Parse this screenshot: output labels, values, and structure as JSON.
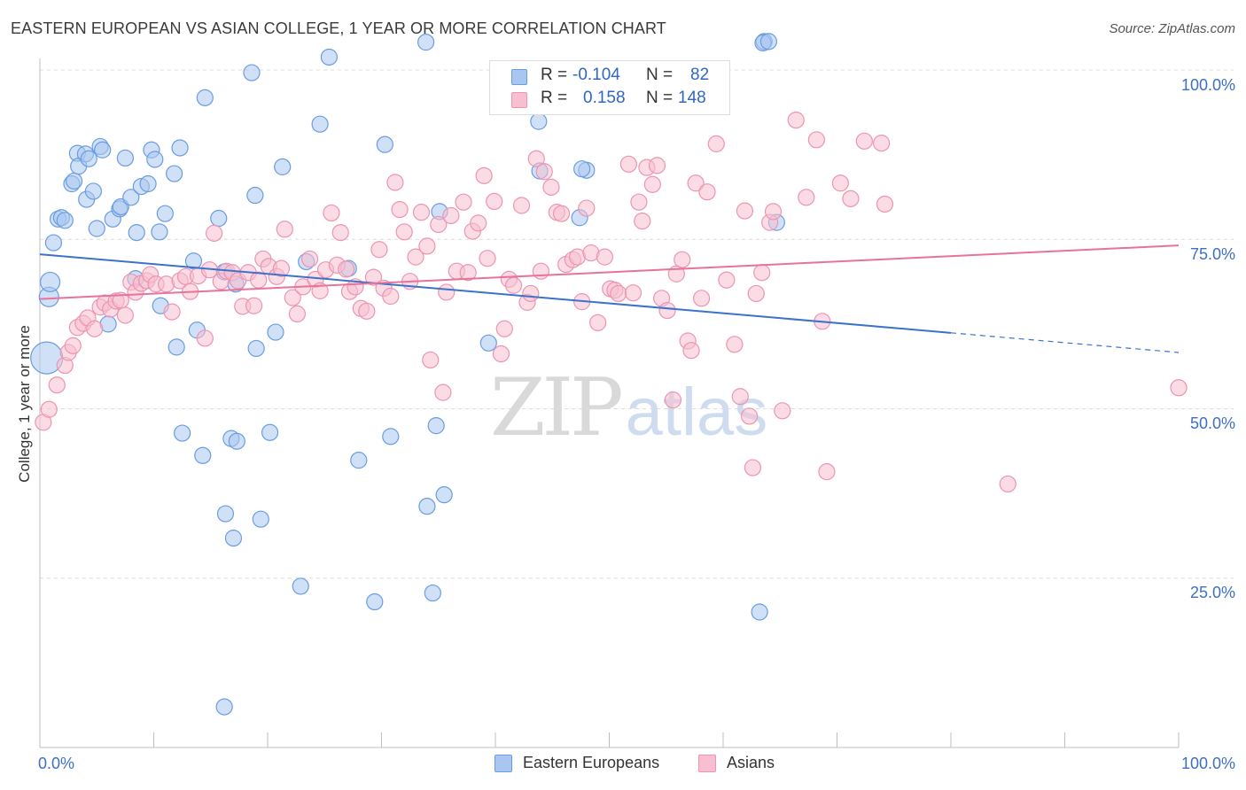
{
  "title": "EASTERN EUROPEAN VS ASIAN COLLEGE, 1 YEAR OR MORE CORRELATION CHART",
  "source": "Source: ZipAtlas.com",
  "watermark": {
    "part1": "ZIP",
    "part2": "atlas"
  },
  "legend": {
    "r_label": "R =",
    "n_label": "N =",
    "eastern": {
      "r": "-0.104",
      "n": "82"
    },
    "asian": {
      "r": "0.158",
      "n": "148"
    }
  },
  "bottom_legend": {
    "eastern": "Eastern Europeans",
    "asian": "Asians"
  },
  "colors": {
    "blue_fill": "#a9c6f0",
    "blue_stroke": "#6a9de0",
    "blue_line": "#3a72cc",
    "pink_fill": "#f7bfd0",
    "pink_stroke": "#ec94b2",
    "pink_line": "#e8729a",
    "tick_text": "#3d6fc6",
    "grid": "#dcdcdc"
  },
  "chart_data": {
    "type": "scatter",
    "title": "EASTERN EUROPEAN VS ASIAN COLLEGE, 1 YEAR OR MORE CORRELATION CHART",
    "xlabel": "",
    "ylabel": "College, 1 year or more",
    "xlim": [
      0,
      100
    ],
    "ylim": [
      0,
      100
    ],
    "x_tick_labels": [
      "0.0%",
      "100.0%"
    ],
    "y_tick_labels": [
      "25.0%",
      "50.0%",
      "75.0%",
      "100.0%"
    ],
    "y_gridlines": [
      25,
      50,
      75,
      100
    ],
    "series": [
      {
        "name": "Eastern Europeans",
        "r": -0.104,
        "n": 82,
        "trend": {
          "x0": 0,
          "y0": 72.8,
          "x1": 80,
          "y1": 61.2,
          "dashed_to_x": 100,
          "dashed_to_y": 58.3
        },
        "points": [
          [
            0.6,
            57.5
          ],
          [
            0.8,
            66.5
          ],
          [
            0.9,
            68.7
          ],
          [
            1.2,
            74.5
          ],
          [
            1.6,
            78.0
          ],
          [
            1.9,
            78.2
          ],
          [
            2.2,
            77.8
          ],
          [
            2.8,
            83.2
          ],
          [
            3.0,
            83.6
          ],
          [
            3.3,
            87.7
          ],
          [
            3.4,
            85.8
          ],
          [
            4.0,
            87.6
          ],
          [
            4.3,
            86.9
          ],
          [
            4.1,
            80.9
          ],
          [
            4.7,
            82.1
          ],
          [
            5.3,
            88.7
          ],
          [
            5.5,
            88.2
          ],
          [
            5.0,
            76.6
          ],
          [
            6.0,
            62.5
          ],
          [
            6.4,
            78.0
          ],
          [
            7.0,
            79.5
          ],
          [
            7.1,
            79.8
          ],
          [
            7.5,
            87.0
          ],
          [
            8.0,
            81.2
          ],
          [
            8.5,
            76.0
          ],
          [
            8.9,
            82.8
          ],
          [
            9.5,
            83.2
          ],
          [
            9.8,
            88.2
          ],
          [
            10.1,
            86.8
          ],
          [
            10.5,
            76.1
          ],
          [
            10.6,
            65.2
          ],
          [
            11.0,
            78.8
          ],
          [
            11.8,
            84.7
          ],
          [
            12.0,
            59.1
          ],
          [
            12.3,
            88.5
          ],
          [
            12.5,
            46.4
          ],
          [
            13.5,
            71.8
          ],
          [
            13.8,
            61.6
          ],
          [
            14.3,
            43.1
          ],
          [
            14.5,
            95.9
          ],
          [
            15.7,
            78.1
          ],
          [
            16.2,
            70.2
          ],
          [
            16.8,
            45.6
          ],
          [
            17.3,
            45.2
          ],
          [
            17.0,
            30.9
          ],
          [
            16.3,
            34.5
          ],
          [
            17.2,
            68.4
          ],
          [
            18.6,
            99.6
          ],
          [
            18.9,
            81.5
          ],
          [
            19.0,
            58.9
          ],
          [
            16.2,
            6.0
          ],
          [
            19.4,
            33.7
          ],
          [
            20.2,
            46.5
          ],
          [
            20.7,
            61.3
          ],
          [
            21.3,
            85.7
          ],
          [
            22.9,
            23.8
          ],
          [
            23.4,
            71.7
          ],
          [
            24.6,
            92.0
          ],
          [
            25.4,
            101.9
          ],
          [
            27.1,
            70.7
          ],
          [
            28.0,
            42.4
          ],
          [
            29.4,
            21.5
          ],
          [
            30.3,
            89.0
          ],
          [
            30.8,
            45.9
          ],
          [
            33.9,
            104.1
          ],
          [
            34.0,
            35.6
          ],
          [
            34.5,
            22.8
          ],
          [
            34.8,
            47.5
          ],
          [
            35.1,
            79.1
          ],
          [
            35.5,
            37.3
          ],
          [
            39.4,
            59.7
          ],
          [
            43.8,
            92.4
          ],
          [
            43.9,
            85.1
          ],
          [
            47.4,
            78.2
          ],
          [
            63.2,
            20.0
          ],
          [
            63.6,
            104.2
          ],
          [
            63.5,
            104.0
          ],
          [
            64.0,
            104.2
          ],
          [
            64.7,
            77.5
          ],
          [
            48.0,
            85.2
          ],
          [
            8.4,
            69.2
          ],
          [
            47.6,
            85.4
          ]
        ]
      },
      {
        "name": "Asians",
        "r": 0.158,
        "n": 148,
        "trend": {
          "x0": 0,
          "y0": 66.2,
          "x1": 100,
          "y1": 74.1
        },
        "points": [
          [
            0.3,
            48.0
          ],
          [
            0.8,
            49.9
          ],
          [
            1.5,
            53.5
          ],
          [
            2.2,
            56.4
          ],
          [
            2.5,
            58.3
          ],
          [
            2.9,
            59.3
          ],
          [
            3.3,
            62.0
          ],
          [
            3.8,
            62.6
          ],
          [
            4.2,
            63.4
          ],
          [
            4.8,
            61.8
          ],
          [
            5.3,
            65.0
          ],
          [
            5.7,
            65.6
          ],
          [
            6.2,
            64.7
          ],
          [
            6.7,
            65.9
          ],
          [
            7.1,
            66.0
          ],
          [
            7.5,
            63.8
          ],
          [
            8.0,
            68.7
          ],
          [
            8.4,
            67.2
          ],
          [
            8.9,
            68.5
          ],
          [
            9.4,
            68.9
          ],
          [
            9.7,
            69.8
          ],
          [
            10.2,
            68.4
          ],
          [
            11.1,
            68.4
          ],
          [
            11.6,
            64.3
          ],
          [
            12.3,
            68.9
          ],
          [
            12.8,
            69.5
          ],
          [
            13.2,
            67.3
          ],
          [
            13.9,
            69.6
          ],
          [
            14.5,
            60.4
          ],
          [
            14.9,
            70.5
          ],
          [
            15.3,
            75.9
          ],
          [
            15.9,
            68.8
          ],
          [
            16.4,
            70.3
          ],
          [
            16.9,
            70.1
          ],
          [
            17.4,
            68.9
          ],
          [
            17.8,
            65.1
          ],
          [
            18.3,
            70.1
          ],
          [
            18.8,
            65.2
          ],
          [
            19.2,
            69.0
          ],
          [
            19.6,
            72.1
          ],
          [
            20.1,
            71.0
          ],
          [
            20.8,
            69.5
          ],
          [
            21.2,
            70.7
          ],
          [
            21.5,
            76.5
          ],
          [
            22.2,
            66.4
          ],
          [
            22.6,
            64.0
          ],
          [
            23.1,
            68.0
          ],
          [
            23.7,
            72.1
          ],
          [
            24.2,
            69.1
          ],
          [
            24.6,
            67.4
          ],
          [
            25.1,
            70.5
          ],
          [
            25.6,
            78.9
          ],
          [
            26.1,
            71.2
          ],
          [
            26.4,
            76.0
          ],
          [
            26.9,
            70.6
          ],
          [
            27.2,
            67.3
          ],
          [
            27.7,
            68.0
          ],
          [
            28.2,
            64.8
          ],
          [
            28.7,
            64.4
          ],
          [
            29.3,
            69.4
          ],
          [
            29.8,
            73.5
          ],
          [
            30.2,
            67.8
          ],
          [
            30.8,
            66.6
          ],
          [
            31.2,
            83.4
          ],
          [
            31.6,
            79.4
          ],
          [
            32.0,
            76.1
          ],
          [
            32.5,
            68.8
          ],
          [
            33.0,
            72.4
          ],
          [
            33.5,
            79.0
          ],
          [
            34.0,
            74.0
          ],
          [
            34.3,
            57.2
          ],
          [
            35.0,
            77.2
          ],
          [
            35.4,
            52.4
          ],
          [
            35.7,
            67.2
          ],
          [
            36.1,
            78.5
          ],
          [
            36.6,
            70.3
          ],
          [
            37.2,
            80.5
          ],
          [
            37.6,
            70.1
          ],
          [
            38.0,
            76.2
          ],
          [
            38.5,
            77.4
          ],
          [
            39.0,
            84.4
          ],
          [
            39.3,
            72.2
          ],
          [
            39.9,
            80.6
          ],
          [
            40.5,
            58.1
          ],
          [
            40.8,
            61.8
          ],
          [
            41.2,
            69.1
          ],
          [
            41.6,
            68.2
          ],
          [
            42.3,
            80.0
          ],
          [
            42.8,
            65.7
          ],
          [
            43.1,
            67.0
          ],
          [
            43.6,
            86.9
          ],
          [
            44.0,
            70.3
          ],
          [
            44.3,
            85.0
          ],
          [
            44.9,
            82.7
          ],
          [
            45.4,
            79.0
          ],
          [
            45.8,
            78.8
          ],
          [
            46.2,
            71.3
          ],
          [
            46.8,
            72.0
          ],
          [
            47.2,
            72.4
          ],
          [
            47.6,
            65.8
          ],
          [
            48.0,
            79.6
          ],
          [
            48.4,
            73.0
          ],
          [
            49.0,
            62.7
          ],
          [
            49.6,
            72.4
          ],
          [
            50.1,
            67.7
          ],
          [
            50.5,
            67.5
          ],
          [
            50.8,
            67.0
          ],
          [
            51.7,
            86.1
          ],
          [
            52.1,
            67.1
          ],
          [
            52.6,
            80.5
          ],
          [
            52.9,
            77.7
          ],
          [
            53.3,
            85.6
          ],
          [
            53.8,
            83.1
          ],
          [
            54.2,
            85.9
          ],
          [
            54.6,
            66.3
          ],
          [
            55.1,
            64.5
          ],
          [
            55.6,
            51.3
          ],
          [
            55.9,
            69.9
          ],
          [
            56.4,
            72.0
          ],
          [
            56.9,
            60.0
          ],
          [
            57.2,
            58.6
          ],
          [
            57.6,
            83.3
          ],
          [
            58.1,
            66.3
          ],
          [
            58.6,
            82.0
          ],
          [
            59.4,
            89.1
          ],
          [
            60.3,
            69.0
          ],
          [
            61.0,
            59.5
          ],
          [
            61.5,
            51.8
          ],
          [
            61.9,
            79.2
          ],
          [
            62.3,
            48.9
          ],
          [
            62.6,
            41.3
          ],
          [
            62.9,
            67.0
          ],
          [
            63.4,
            70.1
          ],
          [
            64.1,
            77.5
          ],
          [
            64.4,
            79.1
          ],
          [
            65.2,
            49.7
          ],
          [
            66.4,
            92.6
          ],
          [
            67.3,
            81.2
          ],
          [
            68.2,
            89.7
          ],
          [
            68.7,
            62.9
          ],
          [
            69.1,
            40.7
          ],
          [
            70.3,
            83.3
          ],
          [
            71.2,
            81.0
          ],
          [
            72.4,
            89.5
          ],
          [
            73.9,
            89.2
          ],
          [
            74.2,
            80.2
          ],
          [
            85.0,
            38.9
          ],
          [
            100.0,
            53.1
          ]
        ]
      }
    ]
  }
}
